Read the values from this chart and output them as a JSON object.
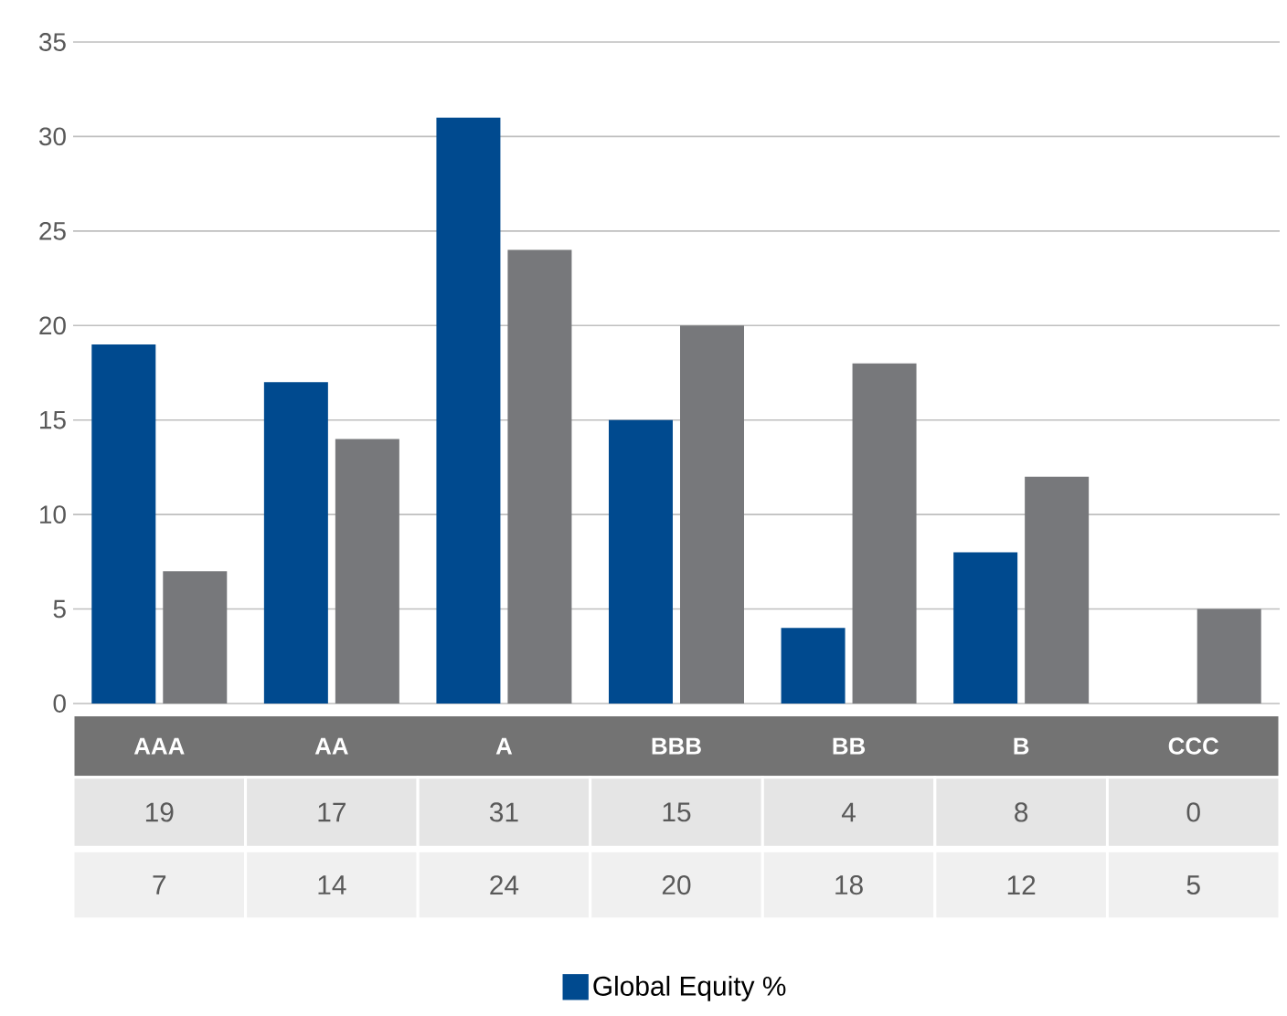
{
  "chart_data": {
    "type": "bar",
    "categories": [
      "AAA",
      "AA",
      "A",
      "BBB",
      "BB",
      "B",
      "CCC"
    ],
    "series": [
      {
        "name": "Global Equity %",
        "color": "#004a8f",
        "values": [
          19,
          17,
          31,
          15,
          4,
          8,
          0
        ]
      },
      {
        "color": "#77787b",
        "values": [
          7,
          14,
          24,
          20,
          18,
          12,
          5
        ]
      }
    ],
    "ylim": [
      0,
      35
    ],
    "yticks": [
      0,
      5,
      10,
      15,
      20,
      25,
      30,
      35
    ],
    "grid": "y",
    "legend": "bottom",
    "data_labels": true
  }
}
